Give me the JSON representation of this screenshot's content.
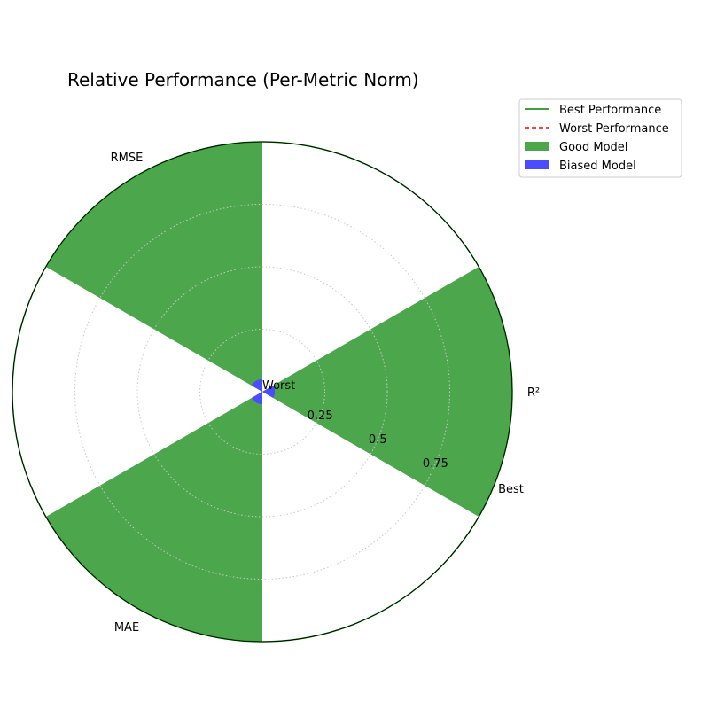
{
  "chart_data": {
    "type": "polar-bar",
    "title": "Relative Performance (Per-Metric Norm)",
    "categories": [
      "R²",
      "RMSE",
      "MAE"
    ],
    "category_angles_deg": [
      0,
      120,
      240
    ],
    "bar_width_deg": 60,
    "radial_ticks": [
      0.25,
      0.5,
      0.75
    ],
    "radial_tick_labels": [
      "0.25",
      "0.5",
      "0.75"
    ],
    "rlim": [
      0,
      1
    ],
    "center_label": "Worst",
    "outer_label": "Best",
    "grid": true,
    "legend_position": "top-right",
    "series": [
      {
        "name": "Good Model",
        "values": [
          1.0,
          1.0,
          1.0
        ],
        "color": "#4ca64c"
      },
      {
        "name": "Biased Model",
        "values": [
          0.05,
          0.05,
          0.05
        ],
        "color": "#4c4cff"
      }
    ],
    "reference_lines": [
      {
        "name": "Best Performance",
        "value": 1.0,
        "color": "#008000",
        "style": "solid"
      },
      {
        "name": "Worst Performance",
        "value": 0.0,
        "color": "#ff0000",
        "style": "dashed"
      }
    ]
  }
}
